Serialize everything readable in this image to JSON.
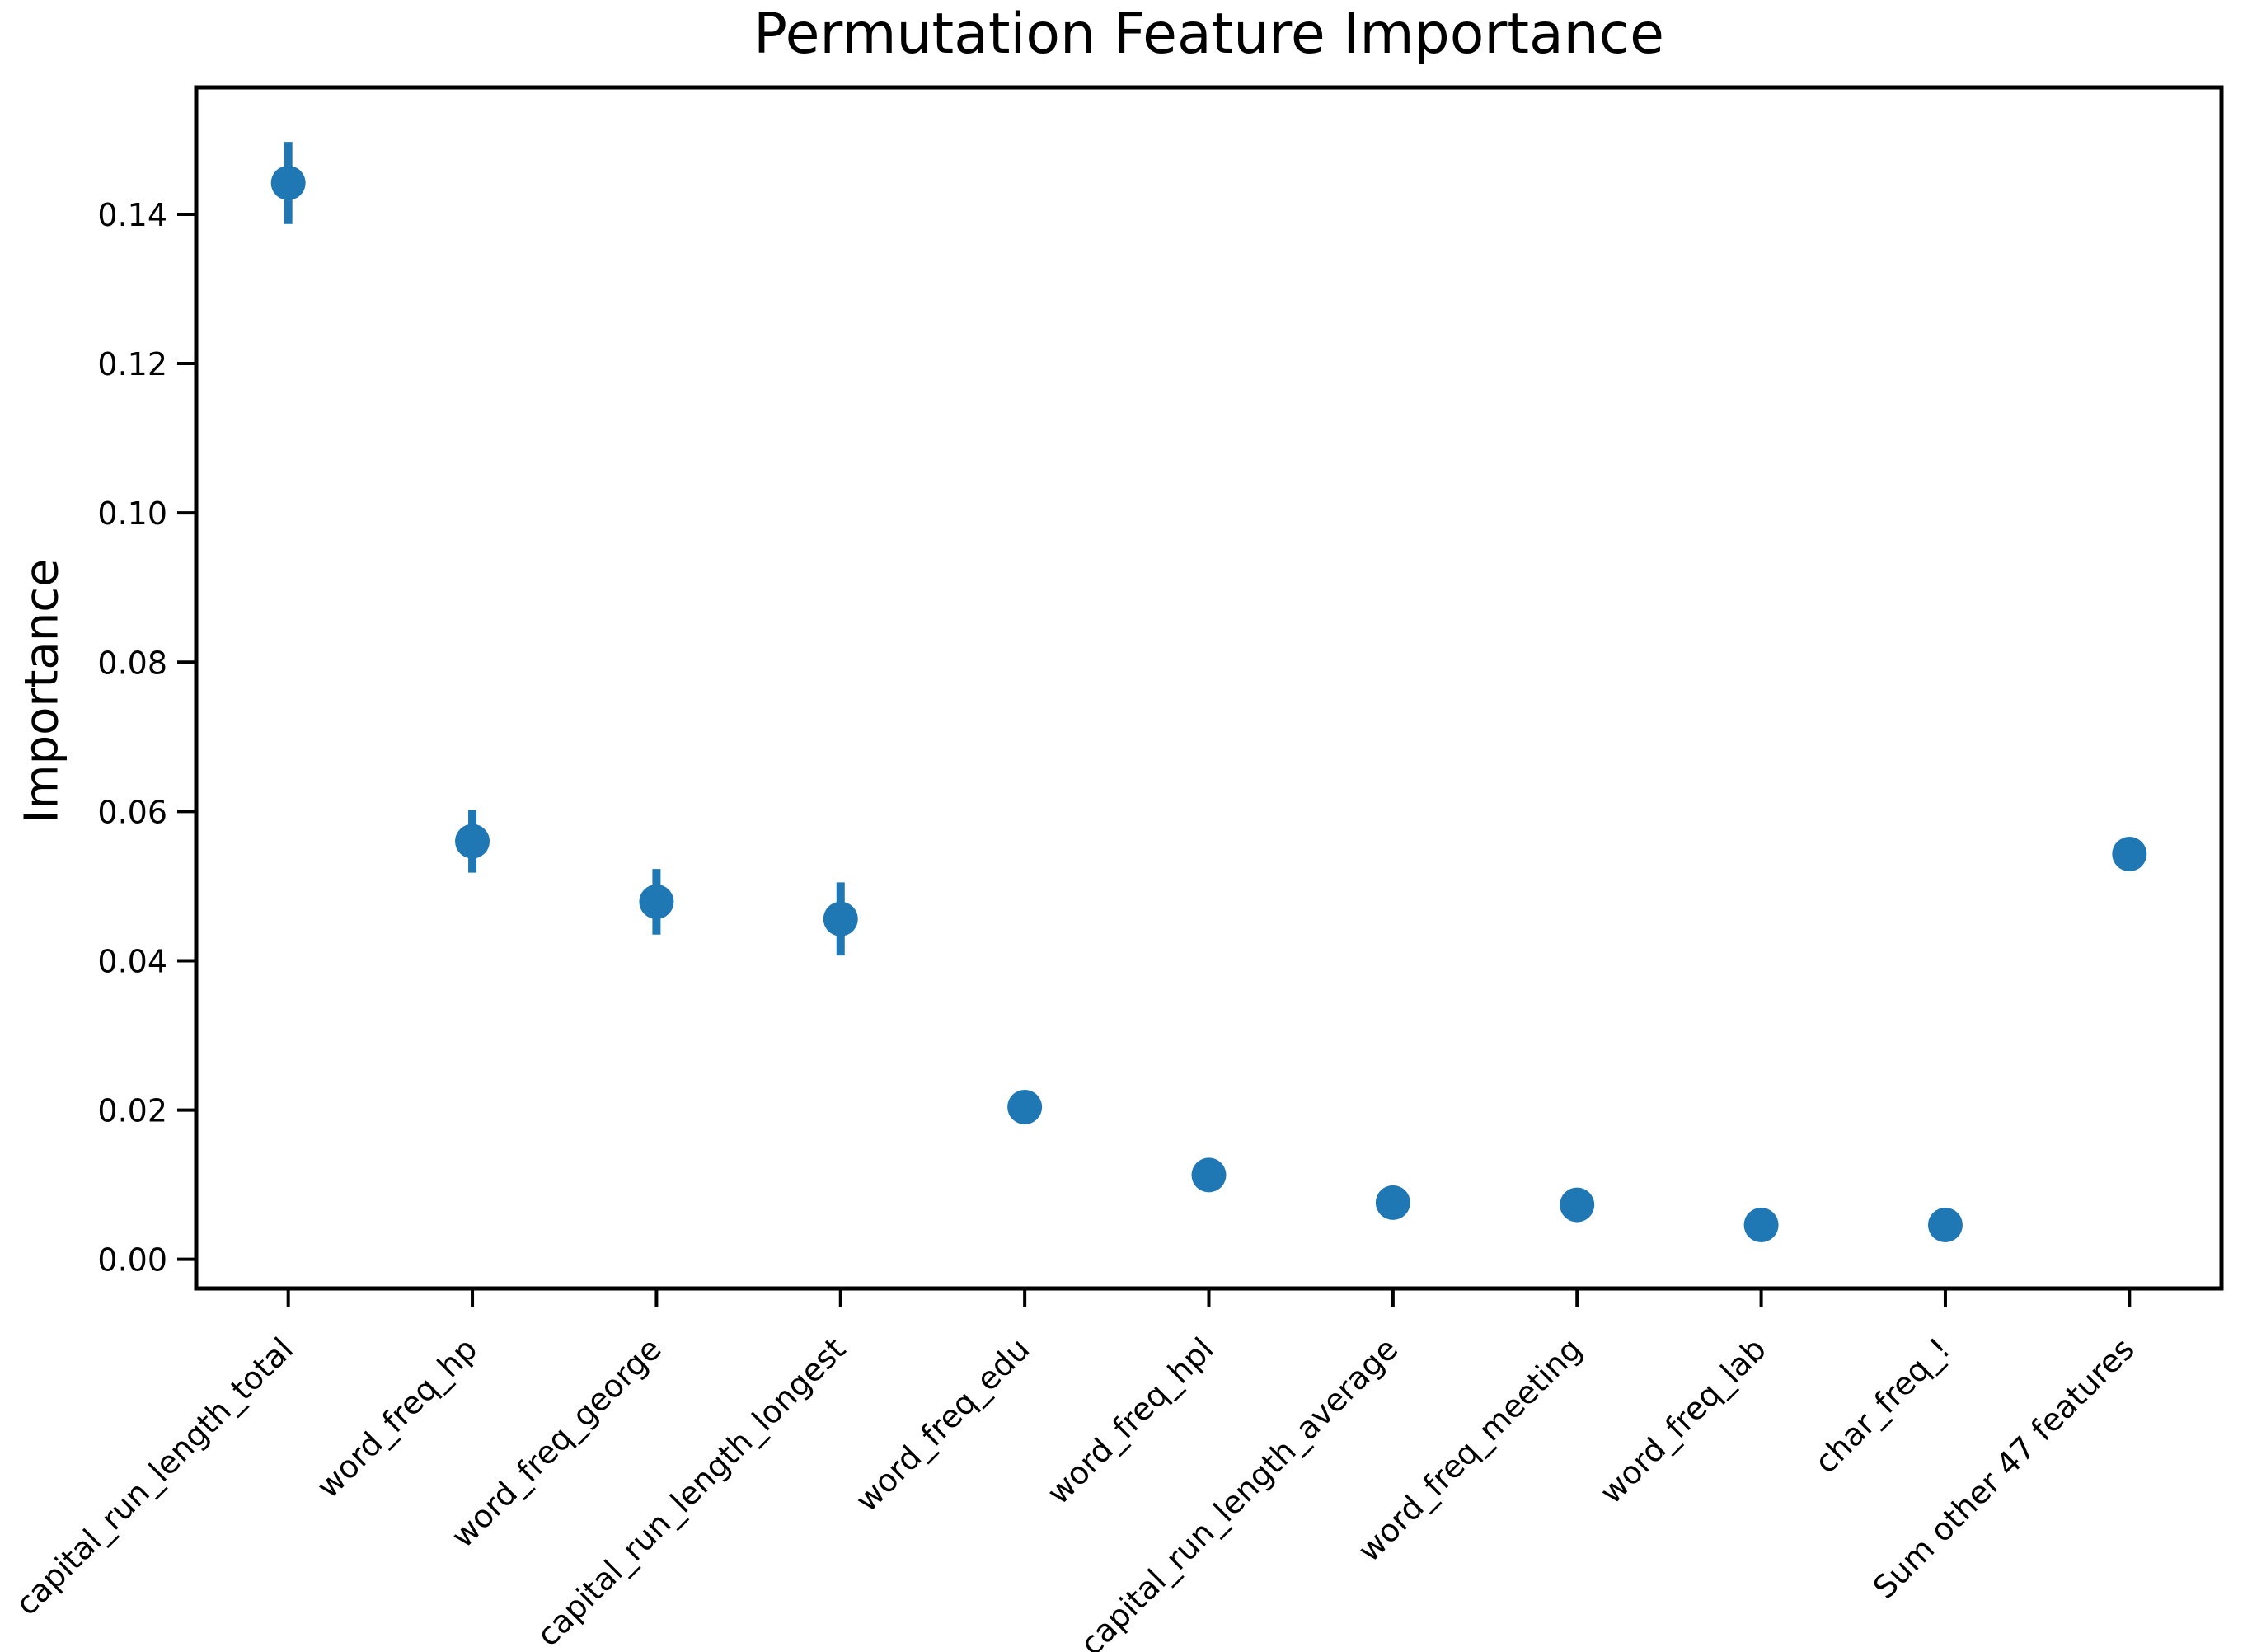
{
  "chart_data": {
    "type": "scatter",
    "title": "Permutation Feature Importance",
    "xlabel": "",
    "ylabel": "Importance",
    "categories": [
      "capital_run_length_total",
      "word_freq_hp",
      "word_freq_george",
      "capital_run_length_longest",
      "word_freq_edu",
      "word_freq_hpl",
      "capital_run_length_average",
      "word_freq_meeting",
      "word_freq_lab",
      "char_freq_!",
      "Sum other 47 features"
    ],
    "values": [
      0.1442,
      0.056,
      0.0479,
      0.0456,
      0.0204,
      0.0113,
      0.0076,
      0.0073,
      0.0046,
      0.0046,
      0.0543
    ],
    "errors": [
      0.0055,
      0.0042,
      0.0044,
      0.0049,
      0,
      0,
      0,
      0,
      0,
      0,
      0
    ],
    "ylim": [
      -0.0039,
      0.157
    ],
    "yticks": [
      0.0,
      0.02,
      0.04,
      0.06,
      0.08,
      0.1,
      0.12,
      0.14
    ],
    "ytick_labels": [
      "0.00",
      "0.02",
      "0.04",
      "0.06",
      "0.08",
      "0.10",
      "0.12",
      "0.14"
    ],
    "xtick_rotation": 45,
    "grid": false,
    "legend": null,
    "marker_color": "#1f77b4",
    "axis_color": "#000000"
  }
}
